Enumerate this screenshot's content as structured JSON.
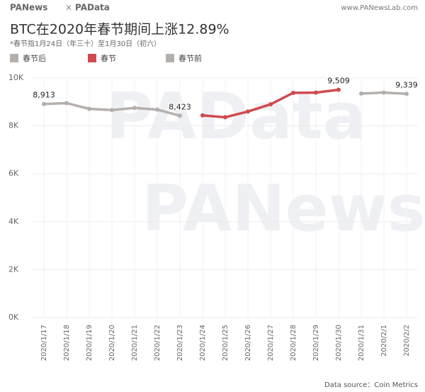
{
  "header": {
    "logo_left": "PANews",
    "logo_sep": "×",
    "logo_right": "PAData",
    "site": "www.PANewsLab.com"
  },
  "watermarks": [
    "PAData",
    "PANews"
  ],
  "source": "Data source：Coin Metrics",
  "chart_data": {
    "type": "line",
    "title": "BTC在2020年春节期间上涨12.89%",
    "subtitle": "*春节指1月24日（年三十）至1月30日（初六）",
    "categories": [
      "2020/1/17",
      "2020/1/18",
      "2020/1/19",
      "2020/1/20",
      "2020/1/21",
      "2020/1/22",
      "2020/1/23",
      "2020/1/24",
      "2020/1/25",
      "2020/1/26",
      "2020/1/27",
      "2020/1/28",
      "2020/1/29",
      "2020/1/30",
      "2020/1/31",
      "2020/2/1",
      "2020/2/2"
    ],
    "series": [
      {
        "name": "春节后",
        "color": "#b5afac",
        "values": [
          null,
          null,
          null,
          null,
          null,
          null,
          null,
          null,
          null,
          null,
          null,
          null,
          null,
          null,
          9350,
          9390,
          9339
        ],
        "value_labels": [
          null,
          null,
          null,
          null,
          null,
          null,
          null,
          null,
          null,
          null,
          null,
          null,
          null,
          null,
          null,
          null,
          "9,339"
        ]
      },
      {
        "name": "春节",
        "color": "#d04a50",
        "values": [
          null,
          null,
          null,
          null,
          null,
          null,
          null,
          8440,
          8360,
          8600,
          8900,
          9380,
          9390,
          9509,
          null,
          null,
          null
        ],
        "value_labels": [
          null,
          null,
          null,
          null,
          null,
          null,
          null,
          null,
          null,
          null,
          null,
          null,
          null,
          "9,509",
          null,
          null,
          null
        ]
      },
      {
        "name": "春节前",
        "color": "#b5afac",
        "values": [
          8913,
          8950,
          8710,
          8660,
          8750,
          8680,
          8423,
          null,
          null,
          null,
          null,
          null,
          null,
          null,
          null,
          null,
          null
        ],
        "value_labels": [
          "8,913",
          null,
          null,
          null,
          null,
          null,
          "8,423",
          null,
          null,
          null,
          null,
          null,
          null,
          null,
          null,
          null,
          null
        ]
      }
    ],
    "ylim": [
      0,
      10000
    ],
    "yticks": [
      {
        "value": 0,
        "label": "0K"
      },
      {
        "value": 2000,
        "label": "2K"
      },
      {
        "value": 4000,
        "label": "4K"
      },
      {
        "value": 6000,
        "label": "6K"
      },
      {
        "value": 8000,
        "label": "8K"
      },
      {
        "value": 10000,
        "label": "10K"
      }
    ],
    "grid": true,
    "legend": "top-left"
  }
}
